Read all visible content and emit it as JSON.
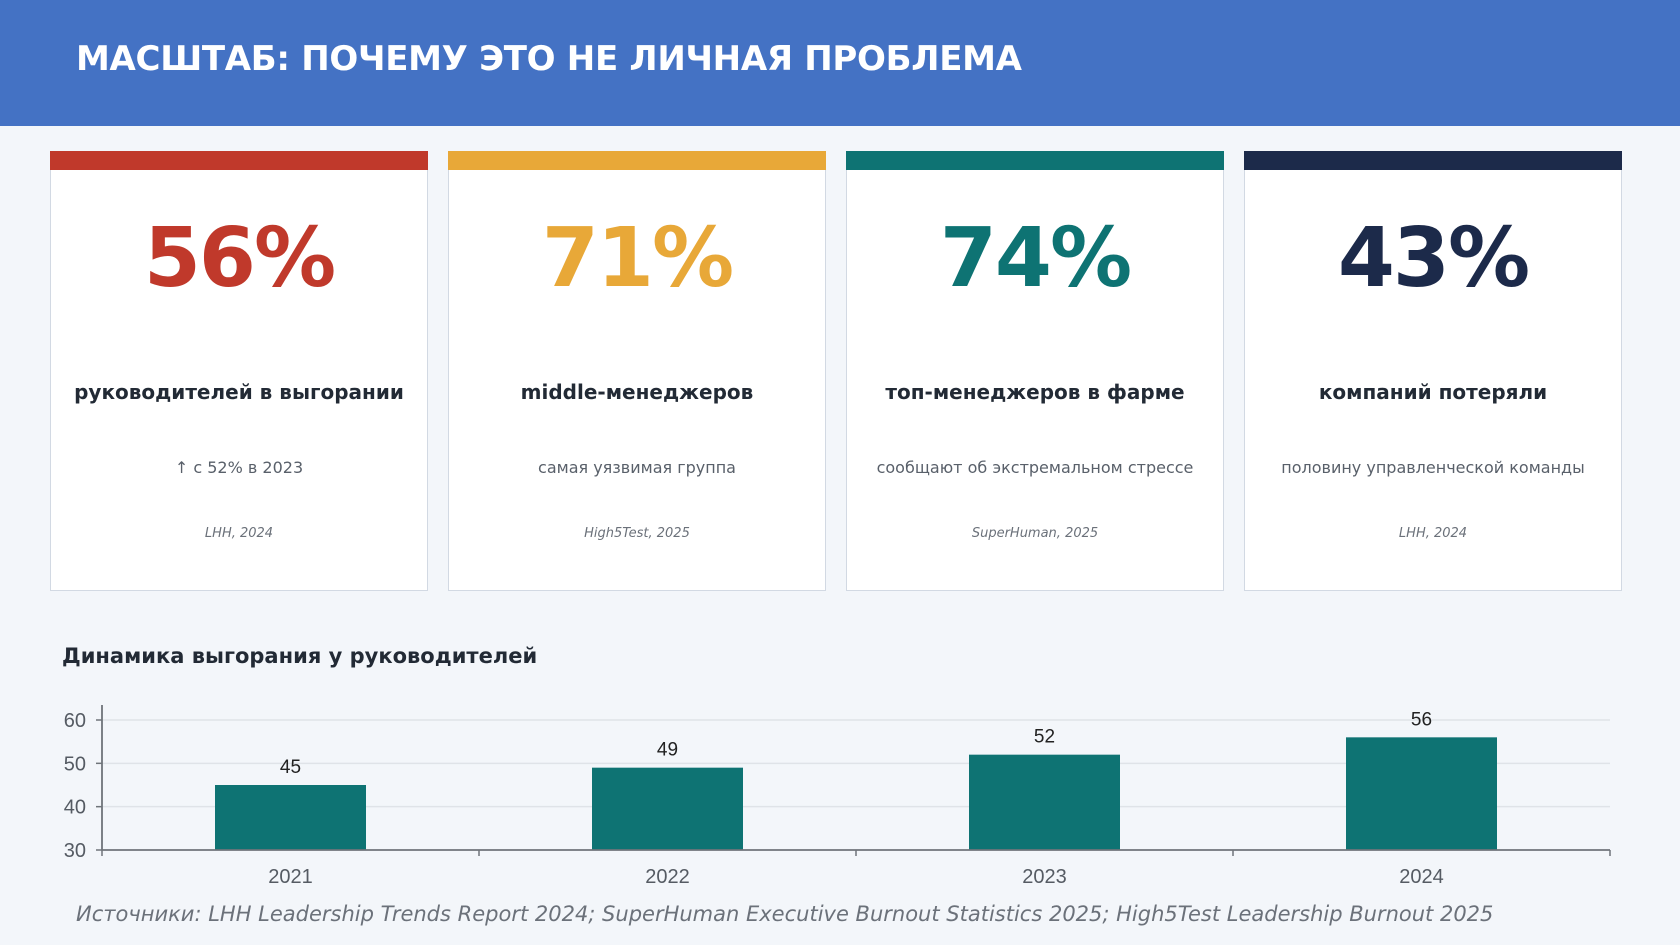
{
  "header": {
    "title": "МАСШТАБ: ПОЧЕМУ ЭТО НЕ ЛИЧНАЯ ПРОБЛЕМА"
  },
  "cards": [
    {
      "value": "56%",
      "label": "руководителей в выгорании",
      "sub": "↑ с 52% в 2023",
      "source": "LHH, 2024",
      "color": "#c0392b"
    },
    {
      "value": "71%",
      "label": "middle-менеджеров",
      "sub": "самая уязвимая группа",
      "source": "High5Test, 2025",
      "color": "#e8a838"
    },
    {
      "value": "74%",
      "label": "топ-менеджеров в фарме",
      "sub": "сообщают об экстремальном стрессе",
      "source": "SuperHuman, 2025",
      "color": "#0e7373"
    },
    {
      "value": "43%",
      "label": "компаний потеряли",
      "sub": "половину управленческой команды",
      "source": "LHH, 2024",
      "color": "#1c2a4a"
    }
  ],
  "chart_title": "Динамика выгорания у руководителей",
  "chart_data": {
    "type": "bar",
    "categories": [
      "2021",
      "2022",
      "2023",
      "2024"
    ],
    "values": [
      45,
      49,
      52,
      56
    ],
    "title": "Динамика выгорания у руководителей",
    "xlabel": "",
    "ylabel": "",
    "ylim": [
      30,
      60
    ],
    "yticks": [
      30,
      40,
      50,
      60
    ],
    "grid": true,
    "bar_color": "#0e7373",
    "data_labels": true
  },
  "footer": "Источники: LHH Leadership Trends Report 2024; SuperHuman Executive Burnout Statistics 2025; High5Test Leadership Burnout 2025"
}
